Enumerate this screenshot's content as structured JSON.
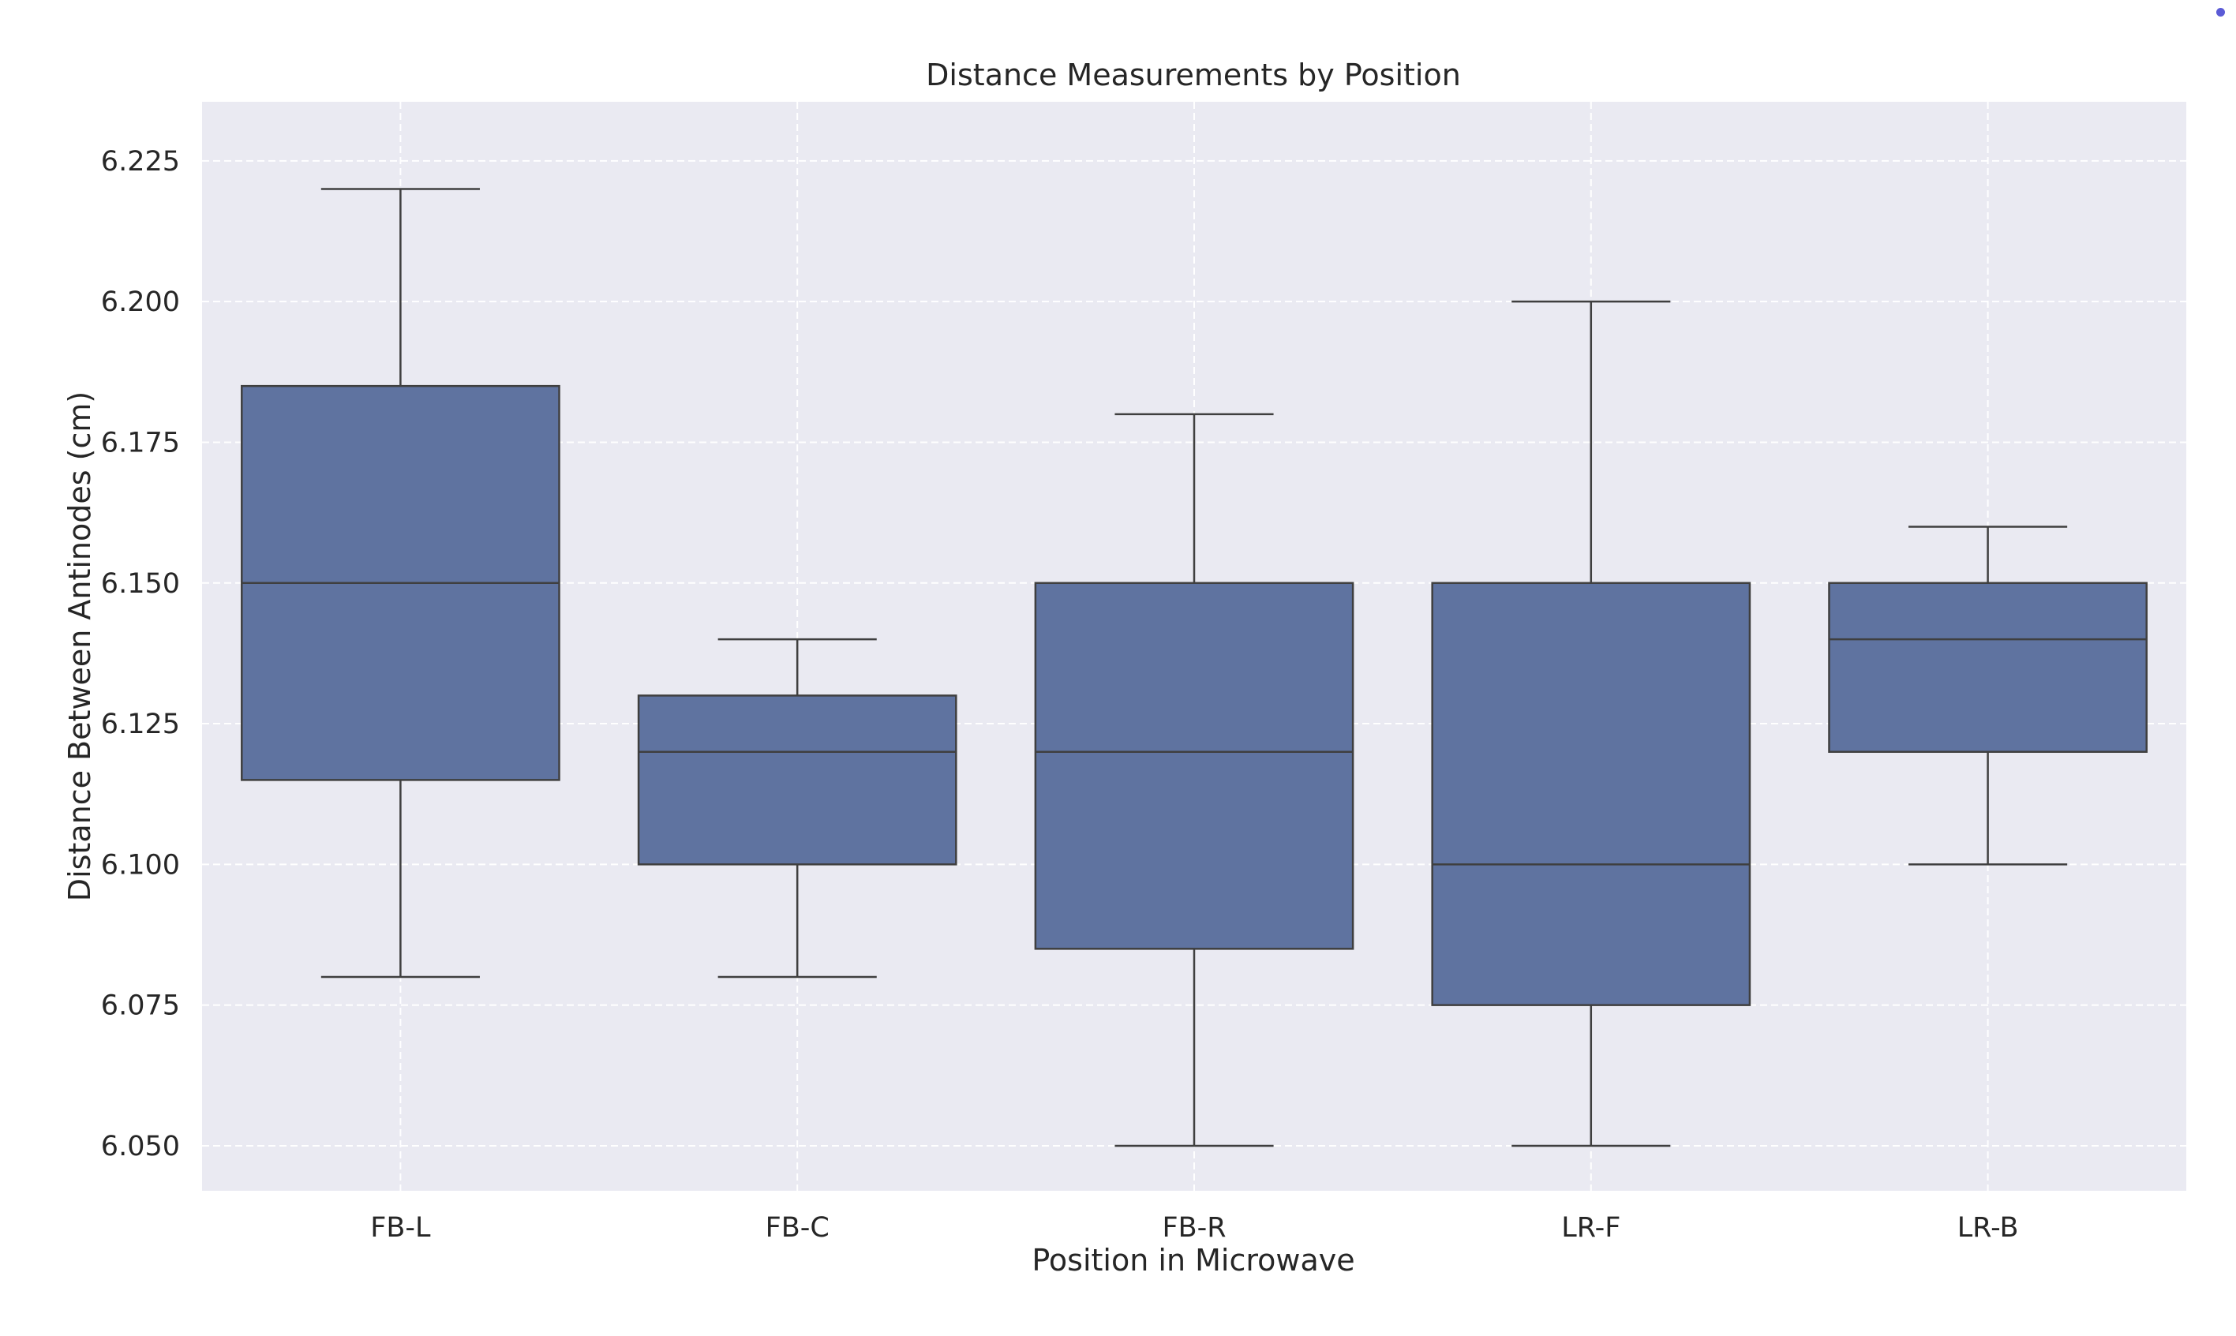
{
  "chart_data": {
    "type": "box",
    "title": "Distance Measurements by Position",
    "xlabel": "Position in Microwave",
    "ylabel": "Distance Between Antinodes (cm)",
    "categories": [
      "FB-L",
      "FB-C",
      "FB-R",
      "LR-F",
      "LR-B"
    ],
    "boxes": [
      {
        "category": "FB-L",
        "whisker_low": 6.08,
        "q1": 6.115,
        "median": 6.15,
        "q3": 6.185,
        "whisker_high": 6.22
      },
      {
        "category": "FB-C",
        "whisker_low": 6.08,
        "q1": 6.1,
        "median": 6.12,
        "q3": 6.13,
        "whisker_high": 6.14
      },
      {
        "category": "FB-R",
        "whisker_low": 6.05,
        "q1": 6.085,
        "median": 6.12,
        "q3": 6.15,
        "whisker_high": 6.18
      },
      {
        "category": "LR-F",
        "whisker_low": 6.05,
        "q1": 6.075,
        "median": 6.1,
        "q3": 6.15,
        "whisker_high": 6.2
      },
      {
        "category": "LR-B",
        "whisker_low": 6.1,
        "q1": 6.12,
        "median": 6.14,
        "q3": 6.15,
        "whisker_high": 6.16
      }
    ],
    "yticks": [
      "6.050",
      "6.075",
      "6.100",
      "6.125",
      "6.150",
      "6.175",
      "6.200",
      "6.225"
    ],
    "ylim": [
      6.042,
      6.2355
    ],
    "grid": true,
    "grid_style": "dashed",
    "colors": {
      "box_fill": "#5f73a0",
      "box_edge": "#3f3f3f",
      "plot_background": "#eaeaf2",
      "grid": "#ffffff",
      "page_background": "#ffffff",
      "corner_dot": "#5b5bd6"
    }
  }
}
